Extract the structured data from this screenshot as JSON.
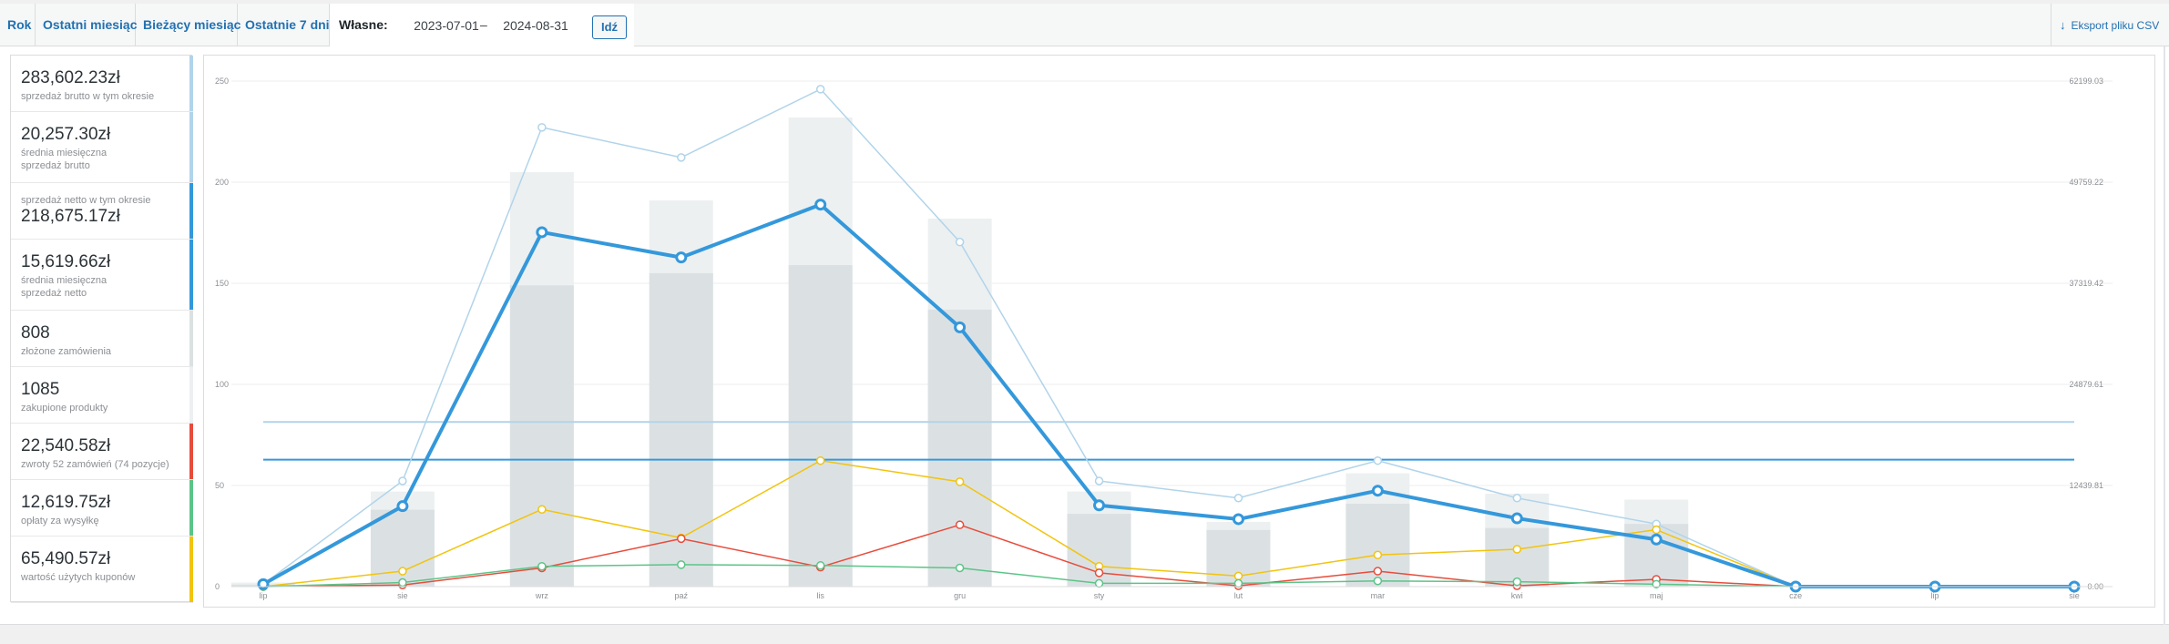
{
  "range_tabs": [
    {
      "label": "Rok",
      "left": 0,
      "width": 39
    },
    {
      "label": "Ostatni miesiąc",
      "left": 39,
      "width": 110
    },
    {
      "label": "Bieżący miesiąc",
      "left": 149,
      "width": 112
    },
    {
      "label": "Ostatnie 7 dni",
      "left": 261,
      "width": 101
    }
  ],
  "custom_range": {
    "label": "Własne:",
    "start_date": "2023-07-01",
    "separator": "–",
    "end_date": "2024-08-31",
    "go_label": "Idź"
  },
  "export": {
    "label": "Eksport pliku CSV",
    "icon": "download-arrow-icon"
  },
  "legend": [
    {
      "amount": "283,602.23zł",
      "desc_before": "",
      "desc": "sprzedaż brutto w tym okresie",
      "color": "#b1d4ea"
    },
    {
      "amount": "20,257.30zł",
      "desc_before": "",
      "desc": "średnia miesięczna sprzedaż brutto",
      "color": "#b1d4ea"
    },
    {
      "amount": "218,675.17zł",
      "desc_before": "sprzedaż netto w tym okresie",
      "desc": "",
      "color": "#3498db"
    },
    {
      "amount": "15,619.66zł",
      "desc_before": "",
      "desc": "średnia miesięczna sprzedaż netto",
      "color": "#3498db"
    },
    {
      "amount": "808",
      "desc_before": "",
      "desc": "złożone zamówienia",
      "color": "#dbe1e3"
    },
    {
      "amount": "1085",
      "desc_before": "",
      "desc": "zakupione produkty",
      "color": "#ecf0f1"
    },
    {
      "amount": "22,540.58zł",
      "desc_before": "",
      "desc": "zwroty 52 zamówień (74 pozycje)",
      "color": "#e74c3c"
    },
    {
      "amount": "12,619.75zł",
      "desc_before": "",
      "desc": "opłaty za wysyłkę",
      "color": "#5cc488"
    },
    {
      "amount": "65,490.57zł",
      "desc_before": "",
      "desc": "wartość użytych kuponów",
      "color": "#f1c40f"
    }
  ],
  "chart_data": {
    "type": "bar",
    "categories": [
      "lip",
      "sie",
      "wrz",
      "paź",
      "lis",
      "gru",
      "sty",
      "lut",
      "mar",
      "kwi",
      "maj",
      "cze",
      "lip",
      "sie"
    ],
    "left_axis": {
      "ticks": [
        "0",
        "50",
        "100",
        "150",
        "200",
        "250"
      ],
      "range": [
        0,
        250
      ]
    },
    "right_axis": {
      "ticks": [
        "0.00",
        "12439.81",
        "24879.61",
        "37319.42",
        "49759.22",
        "62199.03"
      ],
      "range": [
        0,
        62199.03
      ]
    },
    "grid": true,
    "series": [
      {
        "name": "zakupione produkty",
        "kind": "bar",
        "color": "#ecf0f1",
        "values": [
          2,
          47,
          205,
          191,
          232,
          182,
          47,
          32,
          56,
          46,
          43,
          0,
          0,
          0
        ]
      },
      {
        "name": "złożone zamówienia",
        "kind": "bar",
        "color": "#dbe1e3",
        "values": [
          1,
          38,
          149,
          155,
          159,
          137,
          36,
          28,
          41,
          29,
          31,
          0,
          0,
          0
        ]
      },
      {
        "name": "sprzedaż brutto w tym okresie",
        "kind": "line",
        "color": "#b1d4ea",
        "width": 1.5,
        "values": [
          300,
          13000,
          56500,
          52800,
          61200,
          42400,
          13000,
          10900,
          15500,
          10900,
          7700,
          0,
          0,
          0
        ]
      },
      {
        "name": "sprzedaż netto w tym okresie",
        "kind": "line",
        "color": "#3498db",
        "width": 4,
        "values": [
          300,
          9900,
          43600,
          40500,
          47000,
          31900,
          10000,
          8300,
          11800,
          8400,
          5800,
          0,
          0,
          0
        ]
      },
      {
        "name": "wartość użytych kuponów",
        "kind": "line",
        "color": "#f1c40f",
        "width": 1.5,
        "values": [
          0,
          1900,
          9500,
          6000,
          15500,
          12900,
          2500,
          1300,
          3900,
          4600,
          7000,
          0,
          0,
          0
        ]
      },
      {
        "name": "zwroty",
        "kind": "line",
        "color": "#e74c3c",
        "width": 1.5,
        "values": [
          0,
          200,
          2300,
          5900,
          2400,
          7600,
          1700,
          100,
          1900,
          100,
          900,
          0,
          0,
          0
        ]
      },
      {
        "name": "opłaty za wysyłkę",
        "kind": "line",
        "color": "#5cc488",
        "width": 1.5,
        "values": [
          0,
          500,
          2500,
          2700,
          2600,
          2300,
          400,
          400,
          700,
          600,
          300,
          0,
          0,
          0
        ]
      }
    ],
    "average_lines": [
      {
        "name": "średnia miesięczna sprzedaż brutto",
        "color": "#b1d4ea",
        "value": 20257.3
      },
      {
        "name": "średnia miesięczna sprzedaż netto",
        "color": "#3498db",
        "value": 15619.66
      }
    ]
  }
}
